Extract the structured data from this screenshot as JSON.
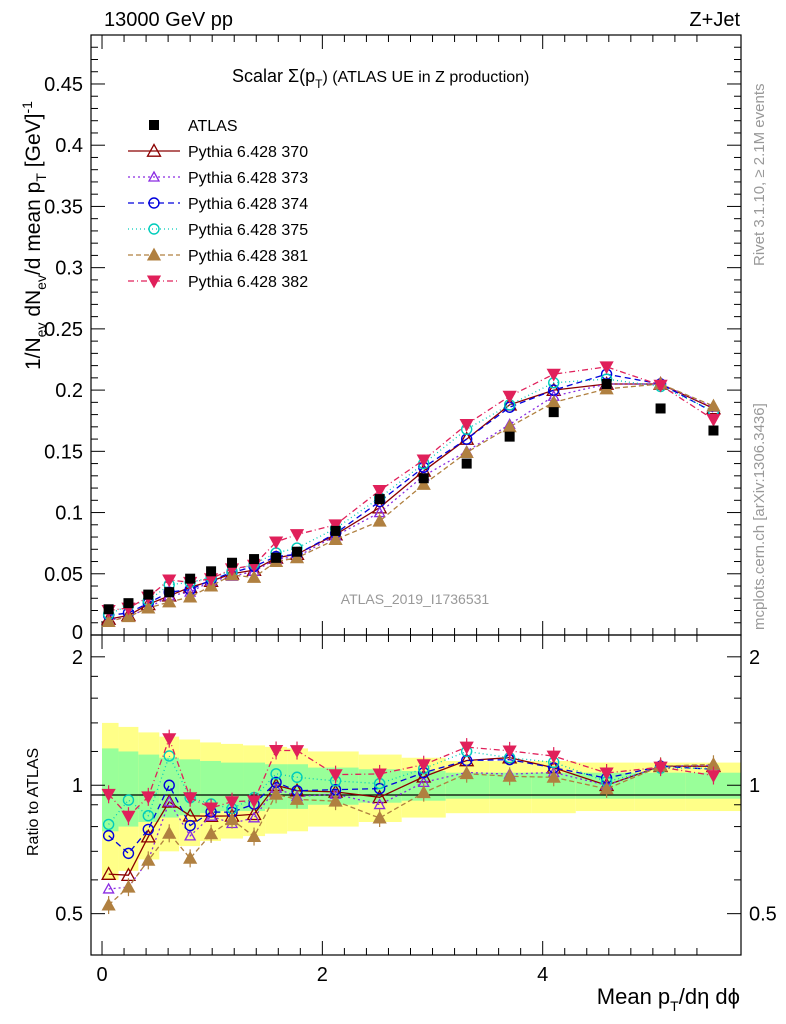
{
  "header": {
    "left": "13000 GeV pp",
    "right": "Z+Jet"
  },
  "side": {
    "rivet": "Rivet 3.1.10, ≥ 2.1M events",
    "mcplots": "mcplots.cern.ch [arXiv:1306.3436]"
  },
  "watermark": "ATLAS_2019_I1736531",
  "chart_data": {
    "type": "scatter",
    "title": "Scalar Σ(p_T) (ATLAS UE in Z production)",
    "title_main": "Scalar Σ(p",
    "title_sub": "T",
    "title_rest": ") (ATLAS UE in Z production)",
    "ylabel": "1/N_ev dN_ev/d mean p_T [GeV]^-1",
    "ylabel_parts": {
      "a": "1/N",
      "a_sub": "ev",
      "b": " dN",
      "b_sub": "ev",
      "c": "/d mean p",
      "c_sub": "T",
      "d": " [GeV]",
      "d_sup": "-1"
    },
    "ratio_ylabel": "Ratio to ATLAS",
    "xlabel": "Mean p_T/dη dϕ",
    "xlabel_parts": {
      "a": "Mean p",
      "a_sub": "T",
      "b": "/dη dϕ"
    },
    "xlim": [
      -0.1,
      5.8
    ],
    "ylim": [
      0,
      0.49
    ],
    "ratio_ylim": [
      0.4,
      2.25
    ],
    "x_ticks": [
      {
        "v": 0,
        "label": "0"
      },
      {
        "v": 2,
        "label": "2"
      },
      {
        "v": 4,
        "label": "4"
      }
    ],
    "y_ticks": [
      {
        "v": 0.05,
        "label": "0.05"
      },
      {
        "v": 0.1,
        "label": "0.1"
      },
      {
        "v": 0.15,
        "label": "0.15"
      },
      {
        "v": 0.2,
        "label": "0.2"
      },
      {
        "v": 0.25,
        "label": "0.25"
      },
      {
        "v": 0.3,
        "label": "0.3"
      },
      {
        "v": 0.35,
        "label": "0.35"
      },
      {
        "v": 0.4,
        "label": "0.4"
      },
      {
        "v": 0.45,
        "label": "0.45"
      }
    ],
    "y_zero_label": "0",
    "ratio_ticks": [
      {
        "v": 0.5,
        "label": "0.5"
      },
      {
        "v": 1,
        "label": "1"
      },
      {
        "v": 2,
        "label": "2"
      }
    ],
    "x": [
      0.06,
      0.24,
      0.42,
      0.61,
      0.8,
      0.99,
      1.18,
      1.38,
      1.58,
      1.77,
      2.12,
      2.52,
      2.92,
      3.31,
      3.7,
      4.1,
      4.58,
      5.07,
      5.55
    ],
    "band_edges": [
      0,
      0.15,
      0.33,
      0.52,
      0.7,
      0.89,
      1.08,
      1.28,
      1.48,
      1.68,
      1.87,
      2.33,
      2.72,
      3.12,
      3.52,
      3.9,
      4.3,
      4.83,
      5.3,
      5.8
    ],
    "band_inner": [
      0.22,
      0.2,
      0.18,
      0.16,
      0.15,
      0.14,
      0.13,
      0.13,
      0.12,
      0.12,
      0.1,
      0.09,
      0.08,
      0.07,
      0.07,
      0.07,
      0.07,
      0.07,
      0.07
    ],
    "band_outer": [
      0.4,
      0.37,
      0.33,
      0.3,
      0.28,
      0.26,
      0.25,
      0.24,
      0.23,
      0.22,
      0.2,
      0.18,
      0.16,
      0.14,
      0.14,
      0.14,
      0.13,
      0.13,
      0.13
    ],
    "band_colors": {
      "outer": "#ffff88",
      "inner": "#99ff99"
    },
    "data": {
      "name": "ATLAS",
      "color": "#000000",
      "y": [
        0.021,
        0.026,
        0.033,
        0.035,
        0.046,
        0.052,
        0.059,
        0.062,
        0.063,
        0.068,
        0.085,
        0.111,
        0.128,
        0.14,
        0.162,
        0.182,
        0.205,
        0.185,
        0.167
      ]
    },
    "series": [
      {
        "name": "Pythia 6.428 370",
        "color": "#8b0000",
        "marker": "tri-open",
        "dash": "",
        "error": false,
        "y": [
          0.013,
          0.016,
          0.025,
          0.032,
          0.039,
          0.044,
          0.05,
          0.053,
          0.063,
          0.066,
          0.082,
          0.104,
          0.134,
          0.16,
          0.188,
          0.2,
          0.205,
          0.205,
          0.185
        ]
      },
      {
        "name": "Pythia 6.428 373",
        "color": "#8a2be2",
        "marker": "tri-open-small",
        "dash": "2,3",
        "error": false,
        "y": [
          0.012,
          0.015,
          0.022,
          0.032,
          0.035,
          0.044,
          0.048,
          0.052,
          0.062,
          0.064,
          0.081,
          0.1,
          0.13,
          0.15,
          0.172,
          0.195,
          0.205,
          0.205,
          0.186
        ]
      },
      {
        "name": "Pythia 6.428 374",
        "color": "#0000dd",
        "marker": "circle-open",
        "dash": "6,4",
        "error": false,
        "y": [
          0.016,
          0.018,
          0.026,
          0.035,
          0.037,
          0.045,
          0.051,
          0.056,
          0.064,
          0.066,
          0.083,
          0.109,
          0.137,
          0.16,
          0.186,
          0.2,
          0.213,
          0.205,
          0.182
        ]
      },
      {
        "name": "Pythia 6.428 375",
        "color": "#00ccbb",
        "marker": "circle-open",
        "dash": "1,3",
        "error": false,
        "y": [
          0.017,
          0.024,
          0.028,
          0.041,
          0.043,
          0.047,
          0.052,
          0.058,
          0.067,
          0.071,
          0.087,
          0.112,
          0.14,
          0.168,
          0.188,
          0.206,
          0.209,
          0.203,
          0.183
        ]
      },
      {
        "name": "Pythia 6.428 381",
        "color": "#b08040",
        "marker": "tri-filled",
        "dash": "5,3",
        "error": true,
        "y": [
          0.011,
          0.015,
          0.022,
          0.027,
          0.031,
          0.04,
          0.049,
          0.047,
          0.06,
          0.063,
          0.078,
          0.093,
          0.123,
          0.149,
          0.17,
          0.19,
          0.201,
          0.205,
          0.187
        ]
      },
      {
        "name": "Pythia 6.428 382",
        "color": "#e0205a",
        "marker": "tri-down-filled",
        "dash": "6,3,1,3",
        "error": true,
        "y": [
          0.02,
          0.022,
          0.031,
          0.045,
          0.043,
          0.046,
          0.054,
          0.057,
          0.076,
          0.082,
          0.09,
          0.118,
          0.143,
          0.172,
          0.195,
          0.213,
          0.219,
          0.204,
          0.176
        ]
      }
    ]
  }
}
